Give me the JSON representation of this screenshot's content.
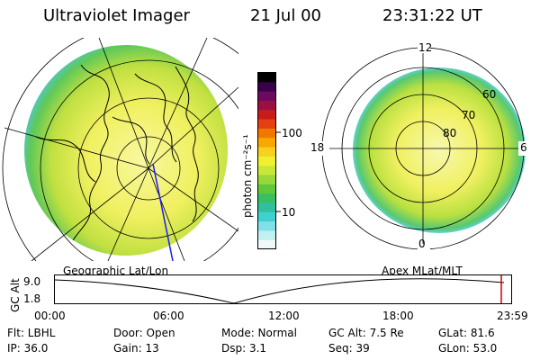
{
  "header": {
    "title": "Ultraviolet Imager",
    "date": "21 Jul 00",
    "time": "23:31:22 UT"
  },
  "colorbar": {
    "unit_label": "photon cm⁻²s⁻¹",
    "ticks": [
      "100",
      "10"
    ],
    "colors": [
      "#000000",
      "#3a0048",
      "#6a0a60",
      "#9b1040",
      "#c81c1c",
      "#e64010",
      "#f07800",
      "#f8a800",
      "#f8d020",
      "#f0f030",
      "#c8e838",
      "#98d838",
      "#60c838",
      "#38c060",
      "#30c0a0",
      "#40d0d0",
      "#80e0e8",
      "#c0f0f0",
      "#f0f8f8"
    ]
  },
  "left_map": {
    "caption": "Geographic Lat/Lon"
  },
  "right_map": {
    "caption": "Apex MLat/MLT",
    "mlt_labels": {
      "top": "12",
      "left": "18",
      "right": "6",
      "bottom": "0"
    },
    "lat_labels": [
      "60",
      "70",
      "80"
    ]
  },
  "alt_plot": {
    "ylabel": "GC Alt",
    "yticks": [
      "9.0",
      "1.8"
    ],
    "xticks": [
      "00:00",
      "06:00",
      "12:00",
      "18:00",
      "23:59"
    ]
  },
  "info": {
    "row1": {
      "flt": "Flt: LBHL",
      "door": "Door: Open",
      "mode": "Mode: Normal",
      "gcalt": "GC Alt: 7.5 Re",
      "glat": "GLat:  81.6"
    },
    "row2": {
      "ip": "IP: 36.0",
      "gain": "Gain: 13",
      "dsp": "Dsp:     3.1",
      "seq": "Seq: 39",
      "glon": "GLon:  53.0"
    }
  }
}
